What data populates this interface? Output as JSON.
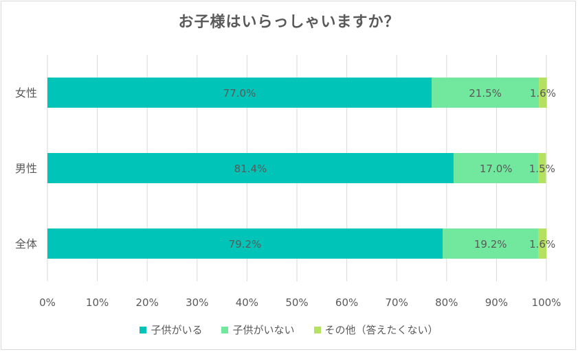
{
  "chart_data": {
    "type": "bar",
    "orientation": "horizontal",
    "stacked": "100%",
    "title": "お子様はいらっしゃいますか？",
    "categories": [
      "女性",
      "男性",
      "全体"
    ],
    "series": [
      {
        "name": "子供がいる",
        "values": [
          77.0,
          81.4,
          79.2
        ],
        "labels": [
          "77.0%",
          "81.4%",
          "79.2%"
        ],
        "color": "#00c4b8"
      },
      {
        "name": "子供がいない",
        "values": [
          21.5,
          17.0,
          19.2
        ],
        "labels": [
          "21.5%",
          "17.0%",
          "19.2%"
        ],
        "color": "#71e89d"
      },
      {
        "name": "その他（答えたくない）",
        "values": [
          1.6,
          1.5,
          1.6
        ],
        "labels": [
          "1.6%",
          "1.5%",
          "1.6%"
        ],
        "color": "#b4e160"
      }
    ],
    "xlim": [
      0,
      100
    ],
    "xticks": [
      "0%",
      "10%",
      "20%",
      "30%",
      "40%",
      "50%",
      "60%",
      "70%",
      "80%",
      "90%",
      "100%"
    ],
    "grid": "vertical",
    "legend_position": "bottom",
    "label_color": "#595959",
    "grid_color": "#d9d9d9"
  }
}
